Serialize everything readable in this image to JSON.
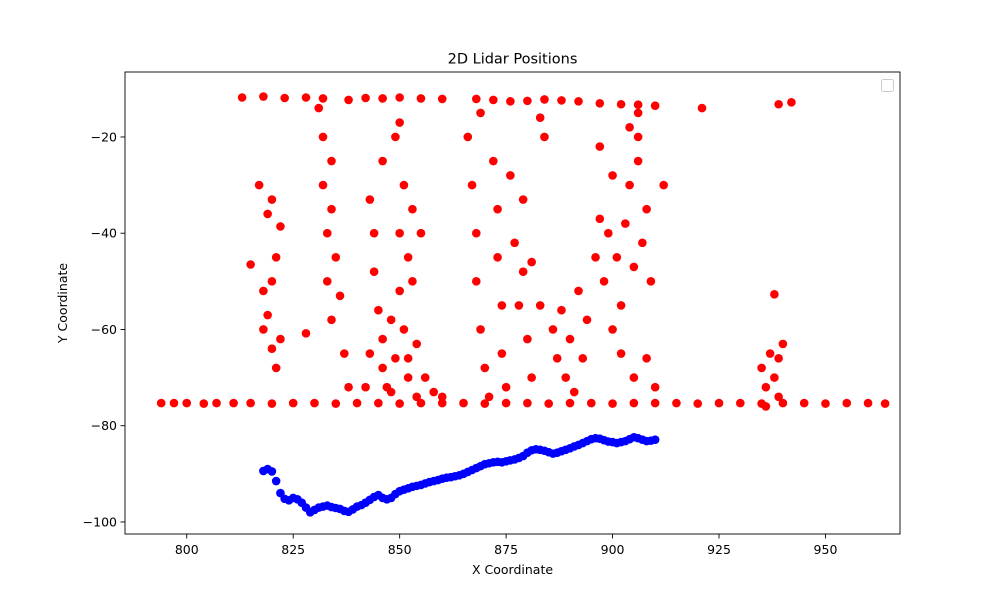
{
  "chart_data": {
    "type": "scatter",
    "title": "2D Lidar Positions",
    "xlabel": "X Coordinate",
    "ylabel": "Y Coordinate",
    "xlim": [
      785.5,
      967.5
    ],
    "ylim": [
      -102.5,
      -6.5
    ],
    "xticks": [
      800,
      825,
      850,
      875,
      900,
      925,
      950
    ],
    "yticks": [
      -100,
      -80,
      -60,
      -40,
      -20
    ],
    "legend": {
      "location": "top-right",
      "entries": []
    },
    "grid": false,
    "colors": {
      "lidar": "#ff0000",
      "trajectory": "#0000ff"
    },
    "series": [
      {
        "color": "#ff0000",
        "marker": "circle",
        "points": [
          [
            794,
            -75.3
          ],
          [
            797,
            -75.3
          ],
          [
            800,
            -75.3
          ],
          [
            804,
            -75.4
          ],
          [
            807,
            -75.3
          ],
          [
            811,
            -75.3
          ],
          [
            815,
            -75.3
          ],
          [
            820,
            -75.4
          ],
          [
            825,
            -75.3
          ],
          [
            830,
            -75.3
          ],
          [
            835,
            -75.4
          ],
          [
            840,
            -75.3
          ],
          [
            845,
            -75.3
          ],
          [
            850,
            -75.4
          ],
          [
            855,
            -75.3
          ],
          [
            860,
            -75.3
          ],
          [
            865,
            -75.3
          ],
          [
            870,
            -75.4
          ],
          [
            875,
            -75.3
          ],
          [
            880,
            -75.3
          ],
          [
            885,
            -75.4
          ],
          [
            890,
            -75.3
          ],
          [
            895,
            -75.3
          ],
          [
            900,
            -75.4
          ],
          [
            905,
            -75.3
          ],
          [
            910,
            -75.3
          ],
          [
            915,
            -75.3
          ],
          [
            920,
            -75.4
          ],
          [
            925,
            -75.3
          ],
          [
            930,
            -75.3
          ],
          [
            935,
            -75.4
          ],
          [
            940,
            -75.3
          ],
          [
            945,
            -75.3
          ],
          [
            950,
            -75.4
          ],
          [
            955,
            -75.3
          ],
          [
            960,
            -75.3
          ],
          [
            964,
            -75.4
          ],
          [
            813,
            -11.8
          ],
          [
            818,
            -11.6
          ],
          [
            823,
            -11.9
          ],
          [
            828,
            -11.8
          ],
          [
            832,
            -12.0
          ],
          [
            838,
            -12.3
          ],
          [
            842,
            -11.9
          ],
          [
            846,
            -12.0
          ],
          [
            850,
            -11.8
          ],
          [
            855,
            -12.0
          ],
          [
            860,
            -12.1
          ],
          [
            868,
            -12.1
          ],
          [
            872,
            -12.3
          ],
          [
            876,
            -12.6
          ],
          [
            880,
            -12.5
          ],
          [
            884,
            -12.2
          ],
          [
            888,
            -12.4
          ],
          [
            892,
            -12.6
          ],
          [
            897,
            -13.0
          ],
          [
            902,
            -13.2
          ],
          [
            906,
            -13.3
          ],
          [
            910,
            -13.5
          ],
          [
            921,
            -14.0
          ],
          [
            939,
            -13.2
          ],
          [
            942,
            -12.8
          ],
          [
            815,
            -46.5
          ],
          [
            817,
            -30
          ],
          [
            818,
            -52
          ],
          [
            818,
            -60
          ],
          [
            819,
            -36
          ],
          [
            819,
            -57
          ],
          [
            820,
            -50
          ],
          [
            820,
            -64
          ],
          [
            820,
            -33
          ],
          [
            821,
            -45
          ],
          [
            822,
            -62
          ],
          [
            821,
            -68
          ],
          [
            822,
            -38.6
          ],
          [
            828,
            -60.8
          ],
          [
            831,
            -14
          ],
          [
            832,
            -20
          ],
          [
            832,
            -30
          ],
          [
            833,
            -40
          ],
          [
            833,
            -50
          ],
          [
            834,
            -58
          ],
          [
            834,
            -25
          ],
          [
            835,
            -45
          ],
          [
            836,
            -53
          ],
          [
            837,
            -65
          ],
          [
            838,
            -72
          ],
          [
            834,
            -35
          ],
          [
            843,
            -33
          ],
          [
            844,
            -40
          ],
          [
            844,
            -48
          ],
          [
            845,
            -56
          ],
          [
            846,
            -62
          ],
          [
            846,
            -68
          ],
          [
            847,
            -72
          ],
          [
            848,
            -58
          ],
          [
            849,
            -66
          ],
          [
            850,
            -40
          ],
          [
            850,
            -52
          ],
          [
            851,
            -30
          ],
          [
            851,
            -60
          ],
          [
            852,
            -45
          ],
          [
            852,
            -70
          ],
          [
            853,
            -35
          ],
          [
            853,
            -50
          ],
          [
            854,
            -63
          ],
          [
            854,
            -74
          ],
          [
            855,
            -40
          ],
          [
            849,
            -20
          ],
          [
            850,
            -17
          ],
          [
            846,
            -25
          ],
          [
            843,
            -65
          ],
          [
            842,
            -72
          ],
          [
            848,
            -73
          ],
          [
            852,
            -66
          ],
          [
            856,
            -70
          ],
          [
            858,
            -73
          ],
          [
            860,
            -74
          ],
          [
            866,
            -20
          ],
          [
            867,
            -30
          ],
          [
            868,
            -40
          ],
          [
            868,
            -50
          ],
          [
            869,
            -60
          ],
          [
            870,
            -68
          ],
          [
            871,
            -74
          ],
          [
            872,
            -25
          ],
          [
            873,
            -35
          ],
          [
            873,
            -45
          ],
          [
            874,
            -55
          ],
          [
            874,
            -65
          ],
          [
            875,
            -72
          ],
          [
            876,
            -28
          ],
          [
            877,
            -42
          ],
          [
            878,
            -55
          ],
          [
            879,
            -48
          ],
          [
            880,
            -62
          ],
          [
            881,
            -70
          ],
          [
            869,
            -15
          ],
          [
            879,
            -33
          ],
          [
            881,
            -46
          ],
          [
            883,
            -55
          ],
          [
            883,
            -16
          ],
          [
            884,
            -20
          ],
          [
            886,
            -60
          ],
          [
            887,
            -66
          ],
          [
            888,
            -56
          ],
          [
            889,
            -70
          ],
          [
            890,
            -62
          ],
          [
            891,
            -73
          ],
          [
            892,
            -52
          ],
          [
            893,
            -66
          ],
          [
            894,
            -58
          ],
          [
            896,
            -45
          ],
          [
            897,
            -37
          ],
          [
            898,
            -50
          ],
          [
            899,
            -40
          ],
          [
            900,
            -28
          ],
          [
            901,
            -45
          ],
          [
            902,
            -55
          ],
          [
            903,
            -38
          ],
          [
            904,
            -30
          ],
          [
            905,
            -47
          ],
          [
            906,
            -20
          ],
          [
            907,
            -42
          ],
          [
            908,
            -35
          ],
          [
            909,
            -50
          ],
          [
            900,
            -60
          ],
          [
            902,
            -65
          ],
          [
            905,
            -70
          ],
          [
            908,
            -66
          ],
          [
            910,
            -72
          ],
          [
            906,
            -15
          ],
          [
            912,
            -30
          ],
          [
            897,
            -22
          ],
          [
            904,
            -18
          ],
          [
            906,
            -25
          ],
          [
            935,
            -68
          ],
          [
            936,
            -72
          ],
          [
            937,
            -65
          ],
          [
            938,
            -70
          ],
          [
            938,
            -52.7
          ],
          [
            939,
            -66
          ],
          [
            940,
            -63
          ],
          [
            939,
            -74
          ],
          [
            936,
            -76
          ]
        ]
      },
      {
        "color": "#0000ff",
        "marker": "circle",
        "points": [
          [
            818,
            -89.4
          ],
          [
            819,
            -89
          ],
          [
            820,
            -89.5
          ],
          [
            821,
            -91.5
          ],
          [
            822,
            -94
          ],
          [
            823,
            -95.2
          ],
          [
            824,
            -95.5
          ],
          [
            825,
            -95
          ],
          [
            826,
            -95.3
          ],
          [
            827,
            -96
          ],
          [
            828,
            -97
          ],
          [
            829,
            -98
          ],
          [
            830,
            -97.5
          ],
          [
            831,
            -97
          ],
          [
            832,
            -96.8
          ],
          [
            833,
            -96.6
          ],
          [
            834,
            -96.9
          ],
          [
            835,
            -97.1
          ],
          [
            836,
            -97.3
          ],
          [
            837,
            -97.7
          ],
          [
            838,
            -97.9
          ],
          [
            839,
            -97.4
          ],
          [
            840,
            -96.8
          ],
          [
            841,
            -96.5
          ],
          [
            842,
            -96
          ],
          [
            843,
            -95.4
          ],
          [
            844,
            -94.8
          ],
          [
            845,
            -94.4
          ],
          [
            846,
            -95
          ],
          [
            847,
            -95.3
          ],
          [
            848,
            -95
          ],
          [
            849,
            -94.2
          ],
          [
            850,
            -93.6
          ],
          [
            851,
            -93.3
          ],
          [
            852,
            -93
          ],
          [
            853,
            -92.7
          ],
          [
            854,
            -92.5
          ],
          [
            855,
            -92.3
          ],
          [
            856,
            -92
          ],
          [
            857,
            -91.7
          ],
          [
            858,
            -91.5
          ],
          [
            859,
            -91.3
          ],
          [
            860,
            -91
          ],
          [
            861,
            -90.8
          ],
          [
            862,
            -90.7
          ],
          [
            863,
            -90.5
          ],
          [
            864,
            -90.3
          ],
          [
            865,
            -90
          ],
          [
            866,
            -89.6
          ],
          [
            867,
            -89.2
          ],
          [
            868,
            -88.8
          ],
          [
            869,
            -88.4
          ],
          [
            870,
            -88
          ],
          [
            871,
            -87.8
          ],
          [
            872,
            -87.6
          ],
          [
            873,
            -87.5
          ],
          [
            874,
            -87.6
          ],
          [
            875,
            -87.4
          ],
          [
            876,
            -87.2
          ],
          [
            877,
            -87
          ],
          [
            878,
            -86.7
          ],
          [
            879,
            -86.3
          ],
          [
            880,
            -85.6
          ],
          [
            881,
            -85.1
          ],
          [
            882,
            -84.9
          ],
          [
            883,
            -85
          ],
          [
            884,
            -85.2
          ],
          [
            885,
            -85.5
          ],
          [
            886,
            -85.8
          ],
          [
            887,
            -85.6
          ],
          [
            888,
            -85.3
          ],
          [
            889,
            -85
          ],
          [
            890,
            -84.7
          ],
          [
            891,
            -84.3
          ],
          [
            892,
            -84
          ],
          [
            893,
            -83.6
          ],
          [
            894,
            -83.2
          ],
          [
            895,
            -82.8
          ],
          [
            896,
            -82.6
          ],
          [
            897,
            -82.7
          ],
          [
            898,
            -83
          ],
          [
            899,
            -83.3
          ],
          [
            900,
            -83.4
          ],
          [
            901,
            -83.6
          ],
          [
            902,
            -83.4
          ],
          [
            903,
            -83.2
          ],
          [
            904,
            -82.8
          ],
          [
            905,
            -82.4
          ],
          [
            906,
            -82.6
          ],
          [
            907,
            -82.9
          ],
          [
            908,
            -83.2
          ],
          [
            909,
            -83.1
          ],
          [
            910,
            -82.9
          ]
        ]
      }
    ]
  }
}
